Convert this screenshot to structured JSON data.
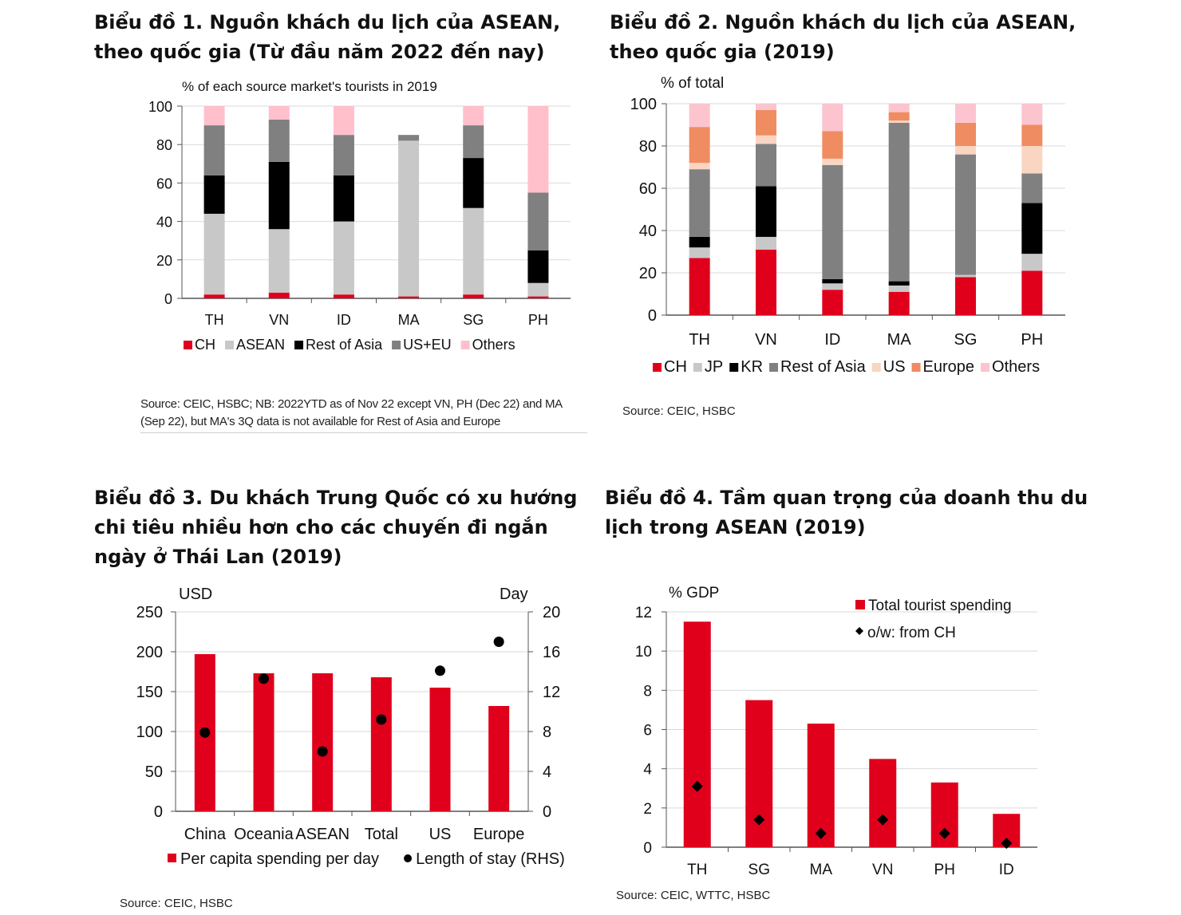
{
  "colors": {
    "CH": "#e0001b",
    "ASEAN": "#c8c8c8",
    "RestAsia": "#000000",
    "USEU": "#808080",
    "Others": "#ffc0cb",
    "JP": "#c8c8c8",
    "KR": "#000000",
    "RestAsia2": "#808080",
    "US": "#f9d5c2",
    "Europe": "#f08c62",
    "Others2": "#fbc4cf",
    "bar": "#e0001b",
    "dot": "#000000"
  },
  "chart_data": [
    {
      "type": "bar",
      "stacked": true,
      "title": "Biểu đồ 1. Nguồn khách du lịch của ASEAN, theo quốc gia (Từ đầu năm 2022 đến nay)",
      "ylabel": "% of each source market's tourists in 2019",
      "ylim": [
        0,
        100
      ],
      "yticks": [
        "0",
        "20",
        "40",
        "60",
        "80",
        "100"
      ],
      "categories": [
        "TH",
        "VN",
        "ID",
        "MA",
        "SG",
        "PH"
      ],
      "series": [
        {
          "name": "CH",
          "color_key": "CH",
          "values": [
            2,
            3,
            2,
            1,
            2,
            1
          ]
        },
        {
          "name": "ASEAN",
          "color_key": "ASEAN",
          "values": [
            42,
            33,
            38,
            81,
            45,
            7
          ]
        },
        {
          "name": "Rest of Asia",
          "color_key": "RestAsia",
          "values": [
            20,
            35,
            24,
            0,
            26,
            17
          ]
        },
        {
          "name": "US+EU",
          "color_key": "USEU",
          "values": [
            26,
            22,
            21,
            3,
            17,
            30
          ]
        },
        {
          "name": "Others",
          "color_key": "Others",
          "values": [
            10,
            7,
            15,
            0,
            10,
            45
          ]
        }
      ],
      "legend": [
        "CH",
        "ASEAN",
        "Rest of Asia",
        "US+EU",
        "Others"
      ],
      "source": "Source: CEIC, HSBC; NB: 2022YTD as of Nov 22 except VN, PH (Dec 22) and MA (Sep 22), but MA's 3Q data is not available for Rest of Asia and Europe",
      "source_lines": [
        "Source: CEIC, HSBC; NB: 2022YTD as of Nov 22 except VN, PH (Dec 22) and MA",
        "(Sep 22), but MA's 3Q data is not available for Rest of Asia and Europe"
      ]
    },
    {
      "type": "bar",
      "stacked": true,
      "title": "Biểu đồ 2. Nguồn khách du lịch của ASEAN, theo quốc gia (2019)",
      "ylabel": "% of total",
      "ylim": [
        0,
        100
      ],
      "yticks": [
        "0",
        "20",
        "40",
        "60",
        "80",
        "100"
      ],
      "categories": [
        "TH",
        "VN",
        "ID",
        "MA",
        "SG",
        "PH"
      ],
      "series": [
        {
          "name": "CH",
          "color_key": "CH",
          "values": [
            27,
            31,
            12,
            11,
            18,
            21
          ]
        },
        {
          "name": "JP",
          "color_key": "JP",
          "values": [
            5,
            6,
            3,
            3,
            1,
            8
          ]
        },
        {
          "name": "KR",
          "color_key": "KR",
          "values": [
            5,
            24,
            2,
            2,
            0,
            24
          ]
        },
        {
          "name": "Rest of Asia",
          "color_key": "RestAsia2",
          "values": [
            32,
            20,
            54,
            75,
            57,
            14
          ]
        },
        {
          "name": "US",
          "color_key": "US",
          "values": [
            3,
            4,
            3,
            1,
            4,
            13
          ]
        },
        {
          "name": "Europe",
          "color_key": "Europe",
          "values": [
            17,
            12,
            13,
            4,
            11,
            10
          ]
        },
        {
          "name": "Others",
          "color_key": "Others2",
          "values": [
            11,
            3,
            13,
            4,
            9,
            10
          ]
        }
      ],
      "legend": [
        "CH",
        "JP",
        "KR",
        "Rest of Asia",
        "US",
        "Europe",
        "Others"
      ],
      "source": "Source: CEIC, HSBC"
    },
    {
      "type": "bar",
      "title": "Biểu đồ 3. Du khách Trung Quốc có xu hướng chi tiêu nhiều hơn cho các chuyến đi ngắn ngày ở Thái Lan (2019)",
      "ylabel": "USD",
      "y2label": "Day",
      "ylim": [
        0,
        250
      ],
      "y2lim": [
        0,
        20
      ],
      "yticks": [
        "0",
        "50",
        "100",
        "150",
        "200",
        "250"
      ],
      "y2ticks": [
        "0",
        "4",
        "8",
        "12",
        "16",
        "20"
      ],
      "categories": [
        "China",
        "Oceania",
        "ASEAN",
        "Total",
        "US",
        "Europe"
      ],
      "series": [
        {
          "name": "Per capita spending per day",
          "values": [
            197,
            173,
            173,
            168,
            155,
            132
          ]
        },
        {
          "name": "Length of stay (RHS)",
          "axis": "right",
          "values": [
            7.9,
            13.3,
            6.0,
            9.2,
            14.1,
            17.0
          ]
        }
      ],
      "legend": [
        "Per capita spending per day",
        "Length of stay (RHS)"
      ],
      "source": "Source: CEIC, HSBC"
    },
    {
      "type": "bar",
      "title": "Biểu đồ 4. Tầm quan trọng của doanh thu du lịch trong ASEAN (2019)",
      "ylabel": "% GDP",
      "ylim": [
        0,
        12
      ],
      "yticks": [
        "0",
        "2",
        "4",
        "6",
        "8",
        "10",
        "12"
      ],
      "categories": [
        "TH",
        "SG",
        "MA",
        "VN",
        "PH",
        "ID"
      ],
      "series": [
        {
          "name": "Total tourist spending",
          "values": [
            11.5,
            7.5,
            6.3,
            4.5,
            3.3,
            1.7
          ]
        },
        {
          "name": "o/w: from CH",
          "values": [
            3.1,
            1.4,
            0.7,
            1.4,
            0.7,
            0.2
          ]
        }
      ],
      "legend": [
        "Total tourist spending",
        "o/w: from CH"
      ],
      "source": "Source: CEIC, WTTC, HSBC"
    }
  ]
}
